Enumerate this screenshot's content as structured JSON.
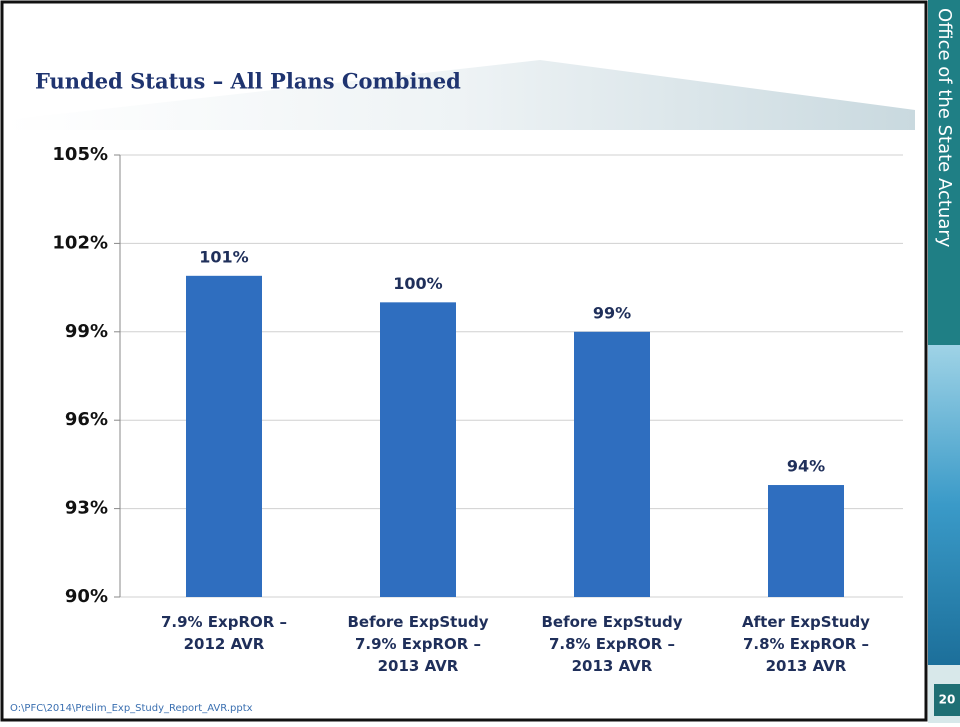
{
  "chart_data": {
    "type": "bar",
    "title": "Funded Status – All Plans Combined",
    "categories": [
      "7.9% ExpROR –\n2012 AVR",
      "Before ExpStudy\n7.9% ExpROR –\n2013 AVR",
      "Before ExpStudy\n7.8% ExpROR –\n2013 AVR",
      "After ExpStudy\n7.8% ExpROR –\n2013 AVR"
    ],
    "values": [
      100.9,
      100.0,
      99.0,
      93.8
    ],
    "value_labels": [
      "101%",
      "100%",
      "99%",
      "94%"
    ],
    "color": "#2f6ebf",
    "ylim": [
      90,
      105
    ],
    "yticks": [
      {
        "value": 90,
        "label": "90%"
      },
      {
        "value": 93,
        "label": "93%"
      },
      {
        "value": 96,
        "label": "96%"
      },
      {
        "value": 99,
        "label": "99%"
      },
      {
        "value": 102,
        "label": "102%"
      },
      {
        "value": 105,
        "label": "105%"
      }
    ],
    "grid": true
  },
  "slide": {
    "side_label": "Office of the State Actuary",
    "page_number": "20",
    "footer": "O:\\PFC\\2014\\Prelim_Exp_Study_Report_AVR.pptx"
  }
}
